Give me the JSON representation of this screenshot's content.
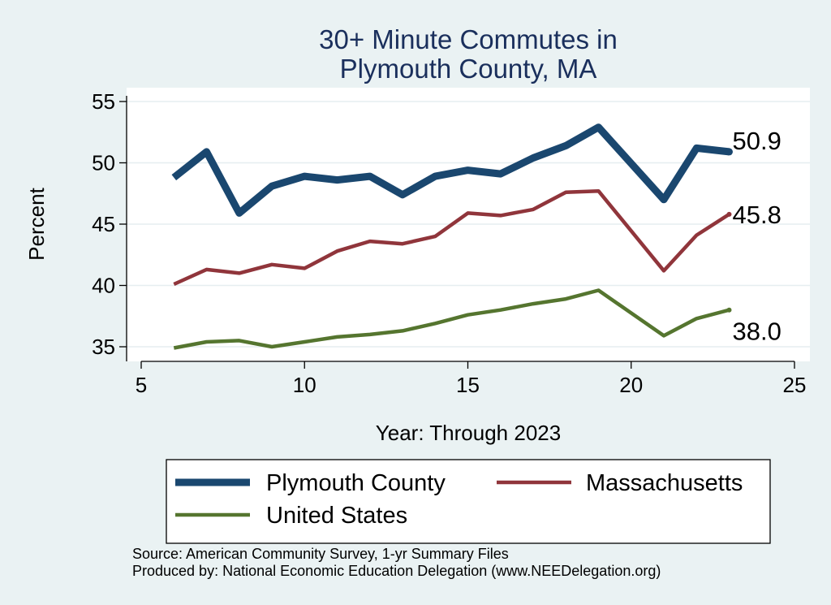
{
  "chart_data": {
    "type": "line",
    "title_lines": [
      "30+ Minute Commutes in",
      "Plymouth County, MA"
    ],
    "xlabel": "Year: Through 2023",
    "ylabel": "Percent",
    "xlim": [
      5,
      25
    ],
    "ylim": [
      34,
      55.5
    ],
    "x_ticks": [
      5,
      10,
      15,
      20,
      25
    ],
    "y_ticks": [
      35,
      40,
      45,
      50,
      55
    ],
    "grid": true,
    "legend_position": "bottom",
    "series": [
      {
        "name": "Plymouth County",
        "color": "#1a476f",
        "x": [
          6,
          7,
          8,
          9,
          10,
          11,
          12,
          13,
          14,
          15,
          16,
          17,
          18,
          19,
          21,
          22,
          23
        ],
        "values": [
          48.8,
          50.9,
          45.9,
          48.1,
          48.9,
          48.6,
          48.9,
          47.4,
          48.9,
          49.4,
          49.1,
          50.4,
          51.4,
          52.9,
          47.0,
          51.2,
          50.9
        ],
        "end_label": "50.9"
      },
      {
        "name": "Massachusetts",
        "color": "#90353b",
        "x": [
          6,
          7,
          8,
          9,
          10,
          11,
          12,
          13,
          14,
          15,
          16,
          17,
          18,
          19,
          21,
          22,
          23
        ],
        "values": [
          40.1,
          41.3,
          41.0,
          41.7,
          41.4,
          42.8,
          43.6,
          43.4,
          44.0,
          45.9,
          45.7,
          46.2,
          47.6,
          47.7,
          41.2,
          44.1,
          45.8
        ],
        "end_label": "45.8"
      },
      {
        "name": "United States",
        "color": "#55752f",
        "x": [
          6,
          7,
          8,
          9,
          10,
          11,
          12,
          13,
          14,
          15,
          16,
          17,
          18,
          19,
          21,
          22,
          23
        ],
        "values": [
          34.9,
          35.4,
          35.5,
          35.0,
          35.4,
          35.8,
          36.0,
          36.3,
          36.9,
          37.6,
          38.0,
          38.5,
          38.9,
          39.6,
          35.9,
          37.3,
          38.0
        ],
        "end_label": "38.0"
      }
    ]
  },
  "notes": {
    "source": "Source: American Community Survey, 1-yr Summary Files",
    "produced_by": "Produced by: National Economic Education Delegation (www.NEEDelegation.org)"
  }
}
